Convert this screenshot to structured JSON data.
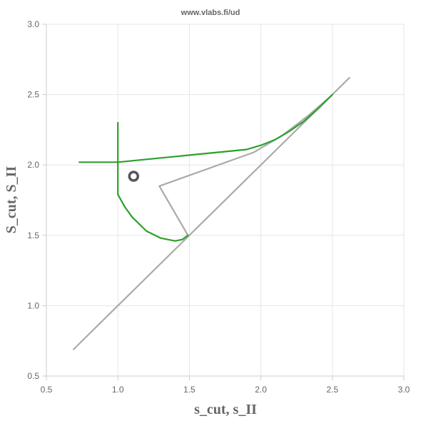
{
  "header": {
    "source": "www.vlabs.fi/ud"
  },
  "chart_data": {
    "type": "line",
    "title": "",
    "xlabel": "s_cut, s_II",
    "ylabel": "S_cut, S_II",
    "xlim": [
      0.5,
      3.0
    ],
    "ylim": [
      0.5,
      3.0
    ],
    "grid": true,
    "x_ticks": [
      "0.5",
      "1.0",
      "1.5",
      "2.0",
      "2.5",
      "3.0"
    ],
    "y_ticks": [
      "0.5",
      "1.0",
      "1.5",
      "2.0",
      "2.5",
      "3.0"
    ],
    "colors": {
      "green": "#2ca02c",
      "gray": "#aaaaaa",
      "marker": "#555555",
      "grid": "#e6e6e6",
      "axis": "#cccccc"
    },
    "series": [
      {
        "color": "#aaaaaa",
        "points": [
          [
            0.69,
            0.69
          ],
          [
            2.62,
            2.62
          ]
        ]
      },
      {
        "color": "#aaaaaa",
        "points": [
          [
            1.49,
            1.5
          ],
          [
            1.29,
            1.85
          ],
          [
            1.95,
            2.09
          ],
          [
            2.15,
            2.21
          ],
          [
            2.33,
            2.35
          ],
          [
            2.49,
            2.49
          ]
        ]
      },
      {
        "color": "#2ca02c",
        "points": [
          [
            0.73,
            2.02
          ],
          [
            1.0,
            2.02
          ],
          [
            1.2,
            2.04
          ],
          [
            1.5,
            2.07
          ],
          [
            1.8,
            2.1
          ],
          [
            1.9,
            2.11
          ],
          [
            2.0,
            2.14
          ],
          [
            2.1,
            2.18
          ],
          [
            2.2,
            2.24
          ],
          [
            2.3,
            2.31
          ],
          [
            2.4,
            2.4
          ],
          [
            2.5,
            2.5
          ]
        ]
      },
      {
        "color": "#2ca02c",
        "points": [
          [
            1.0,
            2.3
          ],
          [
            1.0,
            1.79
          ],
          [
            1.05,
            1.7
          ],
          [
            1.1,
            1.63
          ],
          [
            1.2,
            1.53
          ],
          [
            1.3,
            1.48
          ],
          [
            1.4,
            1.46
          ],
          [
            1.45,
            1.47
          ],
          [
            1.49,
            1.5
          ]
        ]
      }
    ],
    "marker": {
      "x": 1.11,
      "y": 1.92
    }
  }
}
